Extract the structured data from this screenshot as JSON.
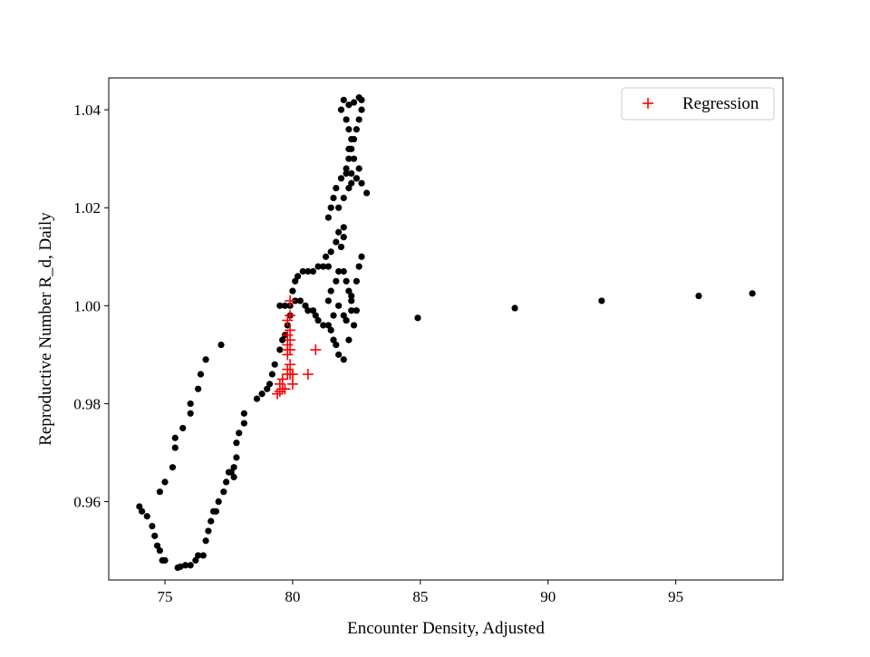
{
  "chart_data": {
    "type": "scatter",
    "xlabel": "Encounter Density, Adjusted",
    "ylabel": "Reproductive Number R_d, Daily",
    "xlim": [
      72.8,
      99.2
    ],
    "ylim": [
      0.944,
      1.0465
    ],
    "xticks": [
      75,
      80,
      85,
      90,
      95
    ],
    "xtick_labels": [
      "75",
      "80",
      "85",
      "90",
      "95"
    ],
    "yticks": [
      0.96,
      0.98,
      1.0,
      1.02,
      1.04
    ],
    "ytick_labels": [
      "0.96",
      "0.98",
      "1.00",
      "1.02",
      "1.04"
    ],
    "legend_position": "top-right",
    "grid": false,
    "series": [
      {
        "marker": "dot",
        "color": "#000000",
        "points": [
          [
            74.0,
            0.959
          ],
          [
            74.1,
            0.958
          ],
          [
            74.3,
            0.957
          ],
          [
            74.5,
            0.955
          ],
          [
            74.6,
            0.953
          ],
          [
            74.7,
            0.951
          ],
          [
            74.8,
            0.95
          ],
          [
            74.9,
            0.948
          ],
          [
            75.0,
            0.948
          ],
          [
            75.5,
            0.9465
          ],
          [
            75.6,
            0.9467
          ],
          [
            75.8,
            0.947
          ],
          [
            76.0,
            0.947
          ],
          [
            76.2,
            0.948
          ],
          [
            76.3,
            0.949
          ],
          [
            76.5,
            0.949
          ],
          [
            76.6,
            0.952
          ],
          [
            76.7,
            0.954
          ],
          [
            76.8,
            0.956
          ],
          [
            76.9,
            0.958
          ],
          [
            77.0,
            0.958
          ],
          [
            77.1,
            0.96
          ],
          [
            77.3,
            0.962
          ],
          [
            77.4,
            0.964
          ],
          [
            77.5,
            0.966
          ],
          [
            77.6,
            0.966
          ],
          [
            77.7,
            0.965
          ],
          [
            77.7,
            0.967
          ],
          [
            77.8,
            0.969
          ],
          [
            77.8,
            0.972
          ],
          [
            77.9,
            0.974
          ],
          [
            78.1,
            0.976
          ],
          [
            78.1,
            0.978
          ],
          [
            78.6,
            0.981
          ],
          [
            78.8,
            0.982
          ],
          [
            79.0,
            0.983
          ],
          [
            79.1,
            0.984
          ],
          [
            79.2,
            0.986
          ],
          [
            79.3,
            0.988
          ],
          [
            79.5,
            0.991
          ],
          [
            79.6,
            0.993
          ],
          [
            79.7,
            0.994
          ],
          [
            79.8,
            0.996
          ],
          [
            79.9,
            0.998
          ],
          [
            79.5,
            1.0
          ],
          [
            79.7,
            1.0
          ],
          [
            79.9,
            1.0
          ],
          [
            80.1,
            1.001
          ],
          [
            80.3,
            1.001
          ],
          [
            80.5,
            1.0
          ],
          [
            80.6,
            0.999
          ],
          [
            80.8,
            0.999
          ],
          [
            80.9,
            0.998
          ],
          [
            80.0,
            1.003
          ],
          [
            80.1,
            1.005
          ],
          [
            80.2,
            1.006
          ],
          [
            80.4,
            1.007
          ],
          [
            80.6,
            1.007
          ],
          [
            80.8,
            1.007
          ],
          [
            81.0,
            1.008
          ],
          [
            81.2,
            1.008
          ],
          [
            81.4,
            1.008
          ],
          [
            81.0,
            0.997
          ],
          [
            81.2,
            0.996
          ],
          [
            81.4,
            0.996
          ],
          [
            81.6,
            0.998
          ],
          [
            81.8,
            1.0
          ],
          [
            82.0,
            0.998
          ],
          [
            81.4,
            1.001
          ],
          [
            81.5,
            1.003
          ],
          [
            81.7,
            1.005
          ],
          [
            81.8,
            1.007
          ],
          [
            82.0,
            1.007
          ],
          [
            82.1,
            1.005
          ],
          [
            82.2,
            1.003
          ],
          [
            82.3,
            1.001
          ],
          [
            82.3,
            0.999
          ],
          [
            82.1,
            0.997
          ],
          [
            81.3,
            1.01
          ],
          [
            81.5,
            1.011
          ],
          [
            81.7,
            1.013
          ],
          [
            81.8,
            1.015
          ],
          [
            82.0,
            1.016
          ],
          [
            82.0,
            1.014
          ],
          [
            81.9,
            1.012
          ],
          [
            81.5,
            0.995
          ],
          [
            81.6,
            0.993
          ],
          [
            81.7,
            0.992
          ],
          [
            81.8,
            0.99
          ],
          [
            82.0,
            0.989
          ],
          [
            82.2,
            0.993
          ],
          [
            82.4,
            0.996
          ],
          [
            82.5,
            0.999
          ],
          [
            82.1,
            0.997
          ],
          [
            82.3,
            1.002
          ],
          [
            82.5,
            1.005
          ],
          [
            82.6,
            1.008
          ],
          [
            82.7,
            1.01
          ],
          [
            81.5,
            1.02
          ],
          [
            81.6,
            1.022
          ],
          [
            81.7,
            1.024
          ],
          [
            81.9,
            1.026
          ],
          [
            82.1,
            1.027
          ],
          [
            82.3,
            1.027
          ],
          [
            82.5,
            1.026
          ],
          [
            82.7,
            1.025
          ],
          [
            82.9,
            1.023
          ],
          [
            81.4,
            1.018
          ],
          [
            81.8,
            1.02
          ],
          [
            82.0,
            1.022
          ],
          [
            82.2,
            1.024
          ],
          [
            82.3,
            1.025
          ],
          [
            82.1,
            1.028
          ],
          [
            82.2,
            1.03
          ],
          [
            82.3,
            1.032
          ],
          [
            82.4,
            1.034
          ],
          [
            82.5,
            1.036
          ],
          [
            82.6,
            1.038
          ],
          [
            82.7,
            1.04
          ],
          [
            82.7,
            1.042
          ],
          [
            82.0,
            1.042
          ],
          [
            81.9,
            1.04
          ],
          [
            82.1,
            1.038
          ],
          [
            82.2,
            1.036
          ],
          [
            82.3,
            1.034
          ],
          [
            82.2,
            1.032
          ],
          [
            82.4,
            1.03
          ],
          [
            82.6,
            1.028
          ],
          [
            82.5,
            1.026
          ],
          [
            82.2,
            1.041
          ],
          [
            82.4,
            1.0415
          ],
          [
            82.6,
            1.0425
          ],
          [
            74.8,
            0.962
          ],
          [
            75.0,
            0.964
          ],
          [
            75.3,
            0.967
          ],
          [
            75.4,
            0.971
          ],
          [
            75.4,
            0.973
          ],
          [
            75.7,
            0.975
          ],
          [
            76.0,
            0.978
          ],
          [
            76.0,
            0.98
          ],
          [
            76.3,
            0.983
          ],
          [
            76.4,
            0.986
          ],
          [
            76.6,
            0.989
          ],
          [
            77.2,
            0.992
          ],
          [
            84.9,
            0.9975
          ],
          [
            88.7,
            0.9995
          ],
          [
            92.1,
            1.001
          ],
          [
            95.9,
            1.002
          ],
          [
            98.0,
            1.0025
          ]
        ]
      },
      {
        "name": "Regression",
        "marker": "plus",
        "color": "#ff0000",
        "points": [
          [
            79.4,
            0.982
          ],
          [
            79.5,
            0.9825
          ],
          [
            79.6,
            0.983
          ],
          [
            79.5,
            0.984
          ],
          [
            79.6,
            0.985
          ],
          [
            79.8,
            0.986
          ],
          [
            79.9,
            0.986
          ],
          [
            80.0,
            0.986
          ],
          [
            80.6,
            0.986
          ],
          [
            79.8,
            0.987
          ],
          [
            79.9,
            0.988
          ],
          [
            79.8,
            0.99
          ],
          [
            79.8,
            0.991
          ],
          [
            79.9,
            0.991
          ],
          [
            80.9,
            0.991
          ],
          [
            79.8,
            0.992
          ],
          [
            79.9,
            0.993
          ],
          [
            79.8,
            0.994
          ],
          [
            79.9,
            0.995
          ],
          [
            79.8,
            0.997
          ],
          [
            79.9,
            0.998
          ],
          [
            79.9,
            1.001
          ],
          [
            79.7,
            0.983
          ],
          [
            80.0,
            0.984
          ]
        ]
      }
    ],
    "legend": [
      {
        "label": "Regression",
        "marker": "plus",
        "color": "#ff0000"
      }
    ]
  }
}
